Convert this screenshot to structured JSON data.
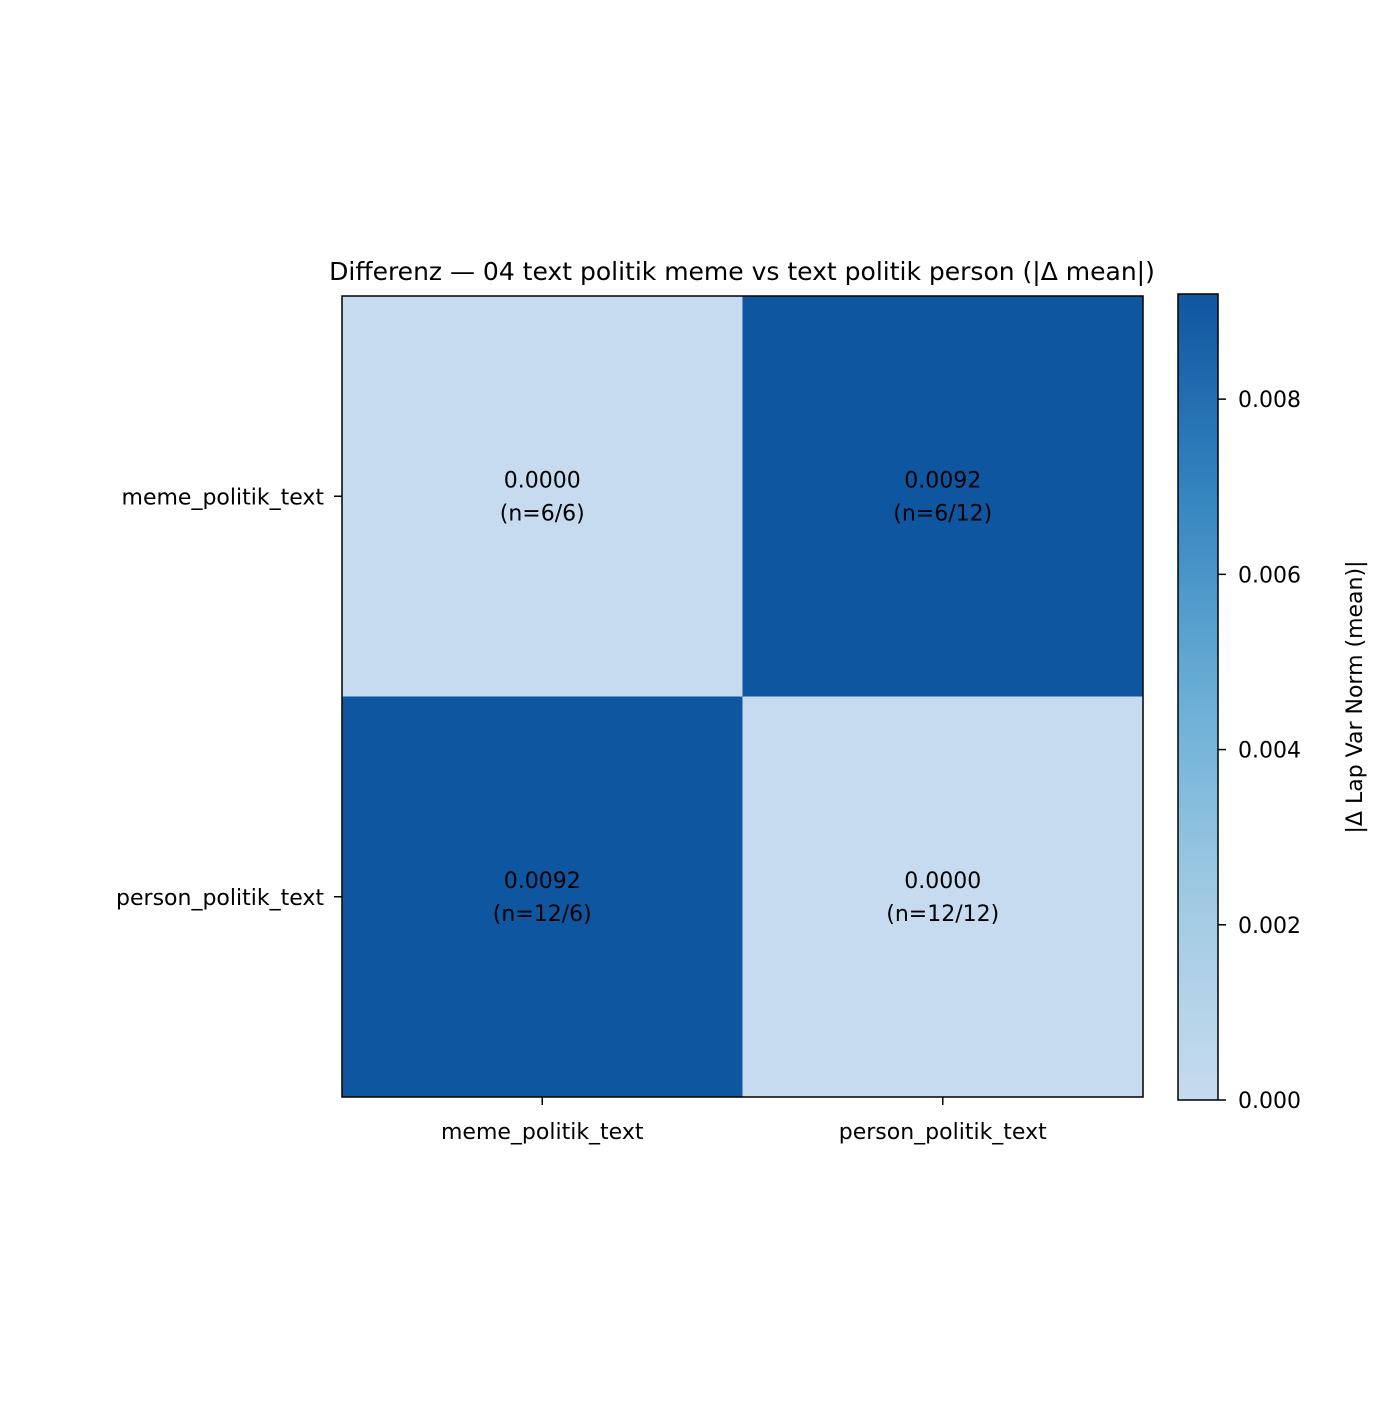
{
  "chart_data": {
    "type": "heatmap",
    "title": "Differenz — 04 text politik meme vs text politik person (|Δ mean|)",
    "rows": [
      "meme_politik_text",
      "person_politik_text"
    ],
    "columns": [
      "meme_politik_text",
      "person_politik_text"
    ],
    "values": [
      [
        0.0,
        0.0092
      ],
      [
        0.0092,
        0.0
      ]
    ],
    "cell_labels": [
      [
        {
          "value": "0.0000",
          "n": "(n=6/6)"
        },
        {
          "value": "0.0092",
          "n": "(n=6/12)"
        }
      ],
      [
        {
          "value": "0.0092",
          "n": "(n=12/6)"
        },
        {
          "value": "0.0000",
          "n": "(n=12/12)"
        }
      ]
    ],
    "colorbar": {
      "label": "|Δ Lap Var Norm (mean)|",
      "range": [
        0,
        0.0092
      ],
      "ticks": [
        0.0,
        0.002,
        0.004,
        0.006,
        0.008
      ],
      "tick_labels": [
        "0.000",
        "0.002",
        "0.004",
        "0.006",
        "0.008"
      ],
      "colormap": "Blues",
      "color_low": "#c6dbef",
      "color_high": "#0e56a0"
    },
    "grid": false
  }
}
